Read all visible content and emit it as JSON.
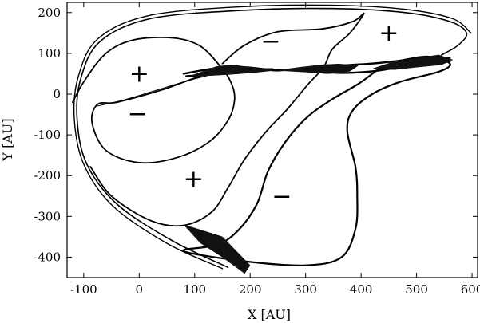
{
  "chart_data": {
    "type": "line",
    "xlabel": "X [AU]",
    "ylabel": "Y [AU]",
    "xlim": [
      -130,
      610
    ],
    "ylim": [
      -450,
      225
    ],
    "x_ticks": [
      -100,
      0,
      100,
      200,
      300,
      400,
      500,
      600
    ],
    "y_ticks": [
      -400,
      -300,
      -200,
      -100,
      0,
      100,
      200
    ],
    "x_tick_labels": [
      "-100",
      "0",
      "100",
      "200",
      "300",
      "400",
      "500",
      "600"
    ],
    "y_tick_labels": [
      "-400",
      "-300",
      "-200",
      "-100",
      "0",
      "100",
      "200"
    ],
    "grid": false,
    "legend": "none",
    "annotations": [
      {
        "text": "+",
        "x": 0,
        "y": 50
      },
      {
        "text": "−",
        "x": -3,
        "y": -48
      },
      {
        "text": "−",
        "x": 237,
        "y": 130
      },
      {
        "text": "+",
        "x": 450,
        "y": 150
      },
      {
        "text": "+",
        "x": 98,
        "y": -208
      },
      {
        "text": "−",
        "x": 257,
        "y": -250
      }
    ],
    "curves": [
      {
        "id": "outer-envelope-1",
        "stroke": 1.6,
        "points": [
          [
            160,
            -425
          ],
          [
            60,
            -360
          ],
          [
            -40,
            -270
          ],
          [
            -95,
            -170
          ],
          [
            -112,
            -60
          ],
          [
            -105,
            40
          ],
          [
            -70,
            130
          ],
          [
            20,
            185
          ],
          [
            180,
            205
          ],
          [
            350,
            210
          ],
          [
            480,
            200
          ],
          [
            560,
            178
          ],
          [
            590,
            150
          ],
          [
            575,
            120
          ],
          [
            545,
            96
          ]
        ]
      },
      {
        "id": "outer-envelope-2",
        "stroke": 1.4,
        "points": [
          [
            150,
            -428
          ],
          [
            50,
            -366
          ],
          [
            -48,
            -274
          ],
          [
            -100,
            -172
          ],
          [
            -117,
            -60
          ],
          [
            -110,
            42
          ],
          [
            -75,
            135
          ],
          [
            15,
            192
          ],
          [
            180,
            214
          ],
          [
            350,
            218
          ],
          [
            480,
            208
          ],
          [
            565,
            185
          ],
          [
            598,
            150
          ]
        ]
      },
      {
        "id": "left-loop",
        "stroke": 1.8,
        "points": [
          [
            -120,
            -20
          ],
          [
            -100,
            30
          ],
          [
            -60,
            100
          ],
          [
            -10,
            133
          ],
          [
            60,
            138
          ],
          [
            110,
            118
          ],
          [
            148,
            65
          ],
          [
            165,
            30
          ],
          [
            172,
            -10
          ],
          [
            162,
            -60
          ],
          [
            128,
            -115
          ],
          [
            70,
            -155
          ],
          [
            0,
            -168
          ],
          [
            -60,
            -138
          ],
          [
            -85,
            -70
          ],
          [
            -75,
            -25
          ],
          [
            -40,
            -20
          ],
          [
            40,
            10
          ],
          [
            140,
            55
          ],
          [
            240,
            62
          ]
        ]
      },
      {
        "id": "upper-middle-loop",
        "stroke": 1.8,
        "points": [
          [
            150,
            75
          ],
          [
            190,
            120
          ],
          [
            250,
            153
          ],
          [
            330,
            160
          ],
          [
            385,
            178
          ],
          [
            405,
            198
          ],
          [
            380,
            150
          ],
          [
            348,
            110
          ],
          [
            332,
            65
          ],
          [
            305,
            25
          ],
          [
            265,
            -40
          ],
          [
            230,
            -90
          ],
          [
            190,
            -160
          ],
          [
            160,
            -230
          ],
          [
            130,
            -290
          ],
          [
            80,
            -322
          ],
          [
            20,
            -310
          ],
          [
            -50,
            -250
          ],
          [
            -88,
            -178
          ]
        ]
      },
      {
        "id": "lower-big-loop",
        "stroke": 2.2,
        "points": [
          [
            430,
            60
          ],
          [
            395,
            25
          ],
          [
            345,
            -15
          ],
          [
            300,
            -60
          ],
          [
            262,
            -120
          ],
          [
            232,
            -190
          ],
          [
            212,
            -270
          ],
          [
            178,
            -335
          ],
          [
            140,
            -370
          ],
          [
            80,
            -385
          ],
          [
            190,
            -410
          ],
          [
            300,
            -420
          ],
          [
            365,
            -400
          ],
          [
            390,
            -330
          ],
          [
            393,
            -250
          ],
          [
            390,
            -180
          ],
          [
            375,
            -90
          ],
          [
            385,
            -40
          ],
          [
            420,
            0
          ],
          [
            470,
            30
          ],
          [
            540,
            55
          ],
          [
            560,
            75
          ],
          [
            520,
            92
          ],
          [
            470,
            82
          ]
        ]
      },
      {
        "id": "dense-band-1",
        "stroke": 2.4,
        "points": [
          [
            80,
            50
          ],
          [
            130,
            62
          ],
          [
            175,
            67
          ],
          [
            215,
            63
          ],
          [
            250,
            58
          ],
          [
            300,
            65
          ],
          [
            360,
            70
          ],
          [
            420,
            75
          ],
          [
            470,
            82
          ],
          [
            520,
            90
          ],
          [
            560,
            88
          ]
        ]
      },
      {
        "id": "dense-band-2",
        "stroke": 2.4,
        "points": [
          [
            85,
            44
          ],
          [
            130,
            48
          ],
          [
            175,
            52
          ],
          [
            215,
            56
          ],
          [
            250,
            60
          ],
          [
            300,
            58
          ],
          [
            360,
            52
          ],
          [
            420,
            56
          ],
          [
            470,
            66
          ],
          [
            520,
            74
          ],
          [
            560,
            80
          ]
        ]
      },
      {
        "id": "thin-link",
        "stroke": 1.0,
        "points": [
          [
            -78,
            -30
          ],
          [
            -30,
            -15
          ],
          [
            20,
            5
          ],
          [
            80,
            30
          ],
          [
            130,
            48
          ]
        ]
      }
    ],
    "fills": [
      {
        "id": "band-a",
        "points": [
          [
            95,
            46
          ],
          [
            140,
            68
          ],
          [
            170,
            72
          ],
          [
            200,
            65
          ],
          [
            240,
            58
          ],
          [
            200,
            52
          ],
          [
            160,
            48
          ],
          [
            120,
            45
          ]
        ]
      },
      {
        "id": "band-b",
        "points": [
          [
            250,
            58
          ],
          [
            290,
            66
          ],
          [
            330,
            72
          ],
          [
            360,
            74
          ],
          [
            395,
            70
          ],
          [
            380,
            56
          ],
          [
            340,
            50
          ],
          [
            300,
            54
          ]
        ]
      },
      {
        "id": "band-c",
        "points": [
          [
            420,
            62
          ],
          [
            460,
            80
          ],
          [
            500,
            88
          ],
          [
            540,
            96
          ],
          [
            565,
            84
          ],
          [
            545,
            72
          ],
          [
            500,
            66
          ],
          [
            460,
            60
          ]
        ]
      },
      {
        "id": "tail-wedge",
        "points": [
          [
            80,
            -320
          ],
          [
            150,
            -350
          ],
          [
            200,
            -420
          ],
          [
            190,
            -440
          ],
          [
            150,
            -400
          ],
          [
            110,
            -365
          ]
        ]
      }
    ]
  }
}
